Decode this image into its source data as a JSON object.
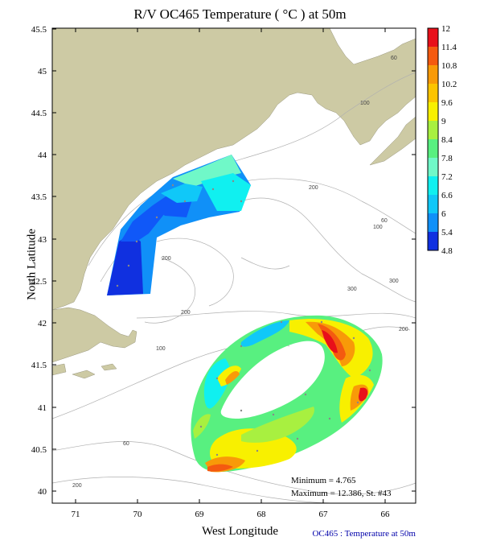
{
  "title": "R/V OC465 Temperature ( °C ) at 50m",
  "xlabel": "West Longitude",
  "ylabel": "North Latitude",
  "x_ticks": [
    "71",
    "70",
    "69",
    "68",
    "67",
    "66"
  ],
  "y_ticks": [
    "45.5",
    "45",
    "44.5",
    "44",
    "43.5",
    "43",
    "42.5",
    "42",
    "41.5",
    "41",
    "40.5",
    "40"
  ],
  "colorbar": {
    "labels": [
      "12",
      "11.4",
      "10.8",
      "10.2",
      "9.6",
      "9",
      "8.4",
      "7.8",
      "7.2",
      "6.6",
      "6",
      "5.4",
      "4.8"
    ],
    "colors": [
      "#e8101a",
      "#f45a10",
      "#f89a08",
      "#fcc400",
      "#f8f000",
      "#a8f040",
      "#58f080",
      "#70f8c8",
      "#10f0f0",
      "#10c8f8",
      "#1090f8",
      "#1058f8",
      "#1030e0"
    ]
  },
  "depth_labels": [
    "60",
    "100",
    "200",
    "200",
    "200",
    "60",
    "100",
    "300",
    "300",
    "100",
    "200",
    "60",
    "100",
    "60",
    "200"
  ],
  "stats": {
    "minimum": "Minimum = 4.765",
    "maximum": "Maximum = 12.386, St. #43"
  },
  "footer": "OC465 : Temperature at 50m",
  "colors": {
    "land": "#cdcaa4",
    "contour": "#b0b0b0"
  }
}
